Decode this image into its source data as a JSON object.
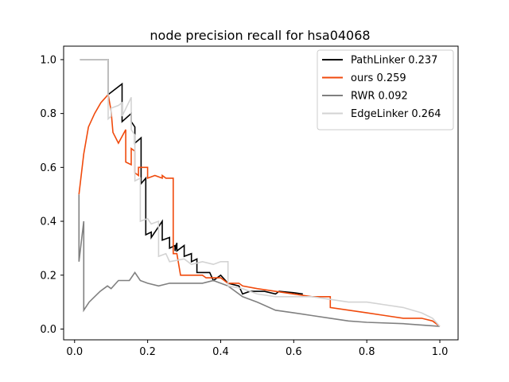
{
  "chart_data": {
    "type": "line",
    "title": "node precision recall for hsa04068",
    "xlabel": "",
    "ylabel": "",
    "xlim": [
      -0.03,
      1.05
    ],
    "ylim": [
      -0.04,
      1.05
    ],
    "xticks": [
      0.0,
      0.2,
      0.4,
      0.6,
      0.8,
      1.0
    ],
    "yticks": [
      0.0,
      0.2,
      0.4,
      0.6,
      0.8,
      1.0
    ],
    "grid": false,
    "legend_position": "top-right",
    "series": [
      {
        "name": "PathLinker 0.237",
        "color": "#000000",
        "points": [
          [
            0.015,
            1.0
          ],
          [
            0.092,
            1.0
          ],
          [
            0.092,
            0.87
          ],
          [
            0.13,
            0.91
          ],
          [
            0.13,
            0.77
          ],
          [
            0.155,
            0.8
          ],
          [
            0.155,
            0.77
          ],
          [
            0.165,
            0.75
          ],
          [
            0.165,
            0.69
          ],
          [
            0.182,
            0.71
          ],
          [
            0.182,
            0.54
          ],
          [
            0.195,
            0.56
          ],
          [
            0.195,
            0.35
          ],
          [
            0.21,
            0.36
          ],
          [
            0.21,
            0.34
          ],
          [
            0.24,
            0.4
          ],
          [
            0.24,
            0.33
          ],
          [
            0.26,
            0.34
          ],
          [
            0.26,
            0.3
          ],
          [
            0.275,
            0.31
          ],
          [
            0.275,
            0.29
          ],
          [
            0.28,
            0.32
          ],
          [
            0.28,
            0.29
          ],
          [
            0.3,
            0.31
          ],
          [
            0.3,
            0.27
          ],
          [
            0.32,
            0.28
          ],
          [
            0.32,
            0.25
          ],
          [
            0.335,
            0.26
          ],
          [
            0.335,
            0.21
          ],
          [
            0.37,
            0.21
          ],
          [
            0.38,
            0.18
          ],
          [
            0.4,
            0.2
          ],
          [
            0.42,
            0.17
          ],
          [
            0.45,
            0.16
          ],
          [
            0.46,
            0.13
          ],
          [
            0.48,
            0.14
          ],
          [
            0.52,
            0.14
          ],
          [
            0.55,
            0.13
          ],
          [
            0.56,
            0.14
          ],
          [
            0.6,
            0.135
          ],
          [
            0.625,
            0.13
          ]
        ]
      },
      {
        "name": "ours 0.259",
        "color": "#f04a0c",
        "points": [
          [
            0.012,
            0.5
          ],
          [
            0.025,
            0.65
          ],
          [
            0.038,
            0.75
          ],
          [
            0.055,
            0.8
          ],
          [
            0.072,
            0.84
          ],
          [
            0.092,
            0.87
          ],
          [
            0.1,
            0.81
          ],
          [
            0.105,
            0.73
          ],
          [
            0.12,
            0.69
          ],
          [
            0.14,
            0.74
          ],
          [
            0.14,
            0.62
          ],
          [
            0.155,
            0.61
          ],
          [
            0.155,
            0.67
          ],
          [
            0.165,
            0.66
          ],
          [
            0.165,
            0.58
          ],
          [
            0.175,
            0.57
          ],
          [
            0.175,
            0.6
          ],
          [
            0.2,
            0.6
          ],
          [
            0.2,
            0.56
          ],
          [
            0.22,
            0.57
          ],
          [
            0.22,
            0.57
          ],
          [
            0.24,
            0.56
          ],
          [
            0.24,
            0.57
          ],
          [
            0.25,
            0.56
          ],
          [
            0.27,
            0.56
          ],
          [
            0.27,
            0.28
          ],
          [
            0.28,
            0.28
          ],
          [
            0.29,
            0.2
          ],
          [
            0.35,
            0.2
          ],
          [
            0.36,
            0.19
          ],
          [
            0.4,
            0.19
          ],
          [
            0.42,
            0.17
          ],
          [
            0.45,
            0.17
          ],
          [
            0.46,
            0.16
          ],
          [
            0.5,
            0.15
          ],
          [
            0.55,
            0.14
          ],
          [
            0.6,
            0.13
          ],
          [
            0.65,
            0.12
          ],
          [
            0.7,
            0.12
          ],
          [
            0.7,
            0.08
          ],
          [
            0.8,
            0.06
          ],
          [
            0.85,
            0.05
          ],
          [
            0.9,
            0.04
          ],
          [
            0.95,
            0.04
          ],
          [
            0.98,
            0.03
          ],
          [
            1.0,
            0.01
          ]
        ]
      },
      {
        "name": "RWR 0.092",
        "color": "#808080",
        "points": [
          [
            0.012,
            0.5
          ],
          [
            0.012,
            0.25
          ],
          [
            0.025,
            0.4
          ],
          [
            0.025,
            0.07
          ],
          [
            0.04,
            0.1
          ],
          [
            0.055,
            0.12
          ],
          [
            0.07,
            0.14
          ],
          [
            0.09,
            0.16
          ],
          [
            0.1,
            0.15
          ],
          [
            0.12,
            0.18
          ],
          [
            0.15,
            0.18
          ],
          [
            0.165,
            0.21
          ],
          [
            0.18,
            0.18
          ],
          [
            0.2,
            0.17
          ],
          [
            0.23,
            0.16
          ],
          [
            0.26,
            0.17
          ],
          [
            0.3,
            0.17
          ],
          [
            0.35,
            0.17
          ],
          [
            0.38,
            0.18
          ],
          [
            0.42,
            0.16
          ],
          [
            0.46,
            0.12
          ],
          [
            0.5,
            0.1
          ],
          [
            0.55,
            0.07
          ],
          [
            0.6,
            0.06
          ],
          [
            0.65,
            0.05
          ],
          [
            0.7,
            0.04
          ],
          [
            0.75,
            0.03
          ],
          [
            0.8,
            0.025
          ],
          [
            0.9,
            0.02
          ],
          [
            0.95,
            0.015
          ],
          [
            1.0,
            0.01
          ]
        ]
      },
      {
        "name": "EdgeLinker 0.264",
        "color": "#d3d3d3",
        "points": [
          [
            0.015,
            1.0
          ],
          [
            0.092,
            1.0
          ],
          [
            0.092,
            0.78
          ],
          [
            0.1,
            0.79
          ],
          [
            0.1,
            0.82
          ],
          [
            0.12,
            0.83
          ],
          [
            0.13,
            0.84
          ],
          [
            0.13,
            0.79
          ],
          [
            0.155,
            0.86
          ],
          [
            0.155,
            0.74
          ],
          [
            0.165,
            0.72
          ],
          [
            0.165,
            0.55
          ],
          [
            0.18,
            0.56
          ],
          [
            0.18,
            0.4
          ],
          [
            0.2,
            0.41
          ],
          [
            0.21,
            0.39
          ],
          [
            0.23,
            0.4
          ],
          [
            0.23,
            0.27
          ],
          [
            0.25,
            0.28
          ],
          [
            0.26,
            0.25
          ],
          [
            0.3,
            0.26
          ],
          [
            0.32,
            0.24
          ],
          [
            0.35,
            0.25
          ],
          [
            0.38,
            0.24
          ],
          [
            0.4,
            0.25
          ],
          [
            0.42,
            0.25
          ],
          [
            0.42,
            0.16
          ],
          [
            0.46,
            0.15
          ],
          [
            0.5,
            0.13
          ],
          [
            0.55,
            0.12
          ],
          [
            0.6,
            0.12
          ],
          [
            0.65,
            0.12
          ],
          [
            0.7,
            0.11
          ],
          [
            0.75,
            0.1
          ],
          [
            0.8,
            0.1
          ],
          [
            0.85,
            0.09
          ],
          [
            0.9,
            0.08
          ],
          [
            0.95,
            0.06
          ],
          [
            0.98,
            0.04
          ],
          [
            1.0,
            0.01
          ]
        ]
      }
    ]
  }
}
